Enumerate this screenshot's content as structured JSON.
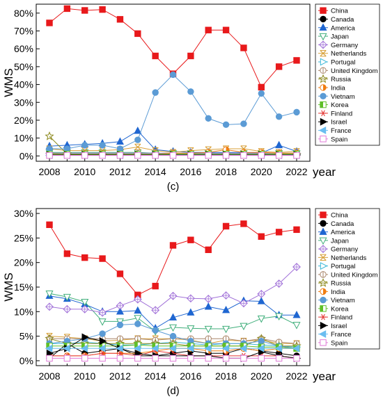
{
  "chart_data": [
    {
      "type": "line",
      "panel_label": "(c)",
      "xlabel": "year",
      "ylabel": "WMS",
      "x": [
        2008,
        2009,
        2010,
        2011,
        2012,
        2013,
        2014,
        2015,
        2016,
        2017,
        2018,
        2019,
        2020,
        2021,
        2022
      ],
      "xticks": [
        "2008",
        "2010",
        "2012",
        "2014",
        "2016",
        "2018",
        "2020",
        "2022"
      ],
      "ylim": [
        -3,
        85
      ],
      "yticks": [
        "0%",
        "10%",
        "20%",
        "30%",
        "40%",
        "50%",
        "60%",
        "70%",
        "80%"
      ],
      "legend_position": "right",
      "series": [
        {
          "name": "China",
          "color": "#e8191b",
          "marker": "square",
          "values": [
            74.5,
            82.5,
            81.5,
            82,
            76.5,
            68.5,
            56,
            46,
            56,
            70.5,
            70.5,
            60.5,
            38.5,
            50,
            53.5
          ]
        },
        {
          "name": "Canada",
          "color": "#000000",
          "marker": "circle",
          "values": [
            0.5,
            0.5,
            0.5,
            0.5,
            0.5,
            0.5,
            0.5,
            0.5,
            0.5,
            0.5,
            0.5,
            0.5,
            0.5,
            0.5,
            0.5
          ]
        },
        {
          "name": "America",
          "color": "#1f66d1",
          "marker": "triangle-up",
          "values": [
            5.5,
            6,
            6.5,
            7,
            8,
            14,
            3.5,
            2.5,
            2,
            2,
            2,
            2,
            1.5,
            6,
            2.5
          ]
        },
        {
          "name": "Japan",
          "color": "#3fae7a",
          "marker": "triangle-down-open",
          "values": [
            2,
            2,
            2,
            2,
            2,
            2,
            1.5,
            1.5,
            1.5,
            1.5,
            1.5,
            1.5,
            1.5,
            1.5,
            1.5
          ]
        },
        {
          "name": "Germany",
          "color": "#a070d8",
          "marker": "diamond-open",
          "values": [
            1.5,
            1.5,
            1.5,
            1.5,
            1.5,
            1.5,
            1.5,
            1.5,
            1.5,
            1.5,
            1.5,
            1.5,
            1.5,
            1.5,
            1.5
          ]
        },
        {
          "name": "Netherlands",
          "color": "#d8a13a",
          "marker": "x-box",
          "values": [
            4,
            3,
            3,
            3,
            3.5,
            5,
            3,
            2,
            3,
            3.5,
            4,
            4,
            2.5,
            2,
            2.5
          ]
        },
        {
          "name": "Portugal",
          "color": "#37b6d6",
          "marker": "triangle-right-open",
          "values": [
            1,
            1,
            1,
            1,
            1,
            1,
            1,
            1,
            1,
            1,
            1,
            1,
            1,
            1,
            1
          ]
        },
        {
          "name": "United Kingdom",
          "color": "#a9856a",
          "marker": "circle-bar",
          "values": [
            1.5,
            1,
            1,
            1,
            1,
            1,
            1,
            1,
            1,
            1,
            1,
            1,
            1,
            1,
            1
          ]
        },
        {
          "name": "Russia",
          "color": "#8d8a1f",
          "marker": "star",
          "values": [
            11,
            1,
            0.5,
            0.5,
            0.5,
            0.5,
            0.5,
            0.5,
            0.5,
            0.5,
            0.5,
            0.5,
            0.5,
            0.5,
            0.5
          ]
        },
        {
          "name": "India",
          "color": "#f07d12",
          "marker": "half-circle",
          "values": [
            1,
            1,
            1,
            1,
            1,
            1,
            1,
            1.5,
            1.5,
            2,
            3.5,
            2,
            2,
            1.5,
            1.5
          ]
        },
        {
          "name": "Vietnam",
          "color": "#5b9bd5",
          "marker": "circle",
          "values": [
            4,
            4,
            6,
            6,
            4,
            9,
            35.5,
            45.5,
            36,
            21,
            17.5,
            18,
            35,
            22,
            24.5
          ]
        },
        {
          "name": "Korea",
          "color": "#5fbf28",
          "marker": "square-half",
          "values": [
            1,
            1,
            1,
            1,
            1,
            1,
            1,
            1,
            1,
            1,
            1,
            1,
            1,
            1,
            1
          ]
        },
        {
          "name": "Finland",
          "color": "#e53935",
          "marker": "asterisk",
          "values": [
            0.5,
            0.5,
            0.5,
            0.5,
            0.5,
            0.5,
            0.5,
            0.5,
            0.5,
            0.5,
            0.5,
            0.5,
            0.5,
            0.5,
            0.5
          ]
        },
        {
          "name": "Israel",
          "color": "#000000",
          "marker": "triangle-right",
          "values": [
            0.5,
            0.5,
            0.5,
            0.5,
            0.5,
            0.5,
            0.5,
            0.5,
            0.5,
            0.5,
            0.5,
            0.5,
            0.5,
            0.5,
            0.5
          ]
        },
        {
          "name": "France",
          "color": "#6bbdf0",
          "marker": "triangle-left",
          "values": [
            0.3,
            0.3,
            0.3,
            0.3,
            0.3,
            0.3,
            0.3,
            0.3,
            0.3,
            0.3,
            0.3,
            0.3,
            0.3,
            0.3,
            0.3
          ]
        },
        {
          "name": "Spain",
          "color": "#e07ad8",
          "marker": "square-open",
          "values": [
            0.3,
            0.3,
            0.3,
            0.3,
            0.3,
            0.3,
            0.3,
            0.3,
            0.3,
            0.3,
            0.3,
            0.3,
            0.3,
            0.3,
            0.3
          ]
        }
      ]
    },
    {
      "type": "line",
      "panel_label": "(d)",
      "xlabel": "year",
      "ylabel": "WMS",
      "x": [
        2008,
        2009,
        2010,
        2011,
        2012,
        2013,
        2014,
        2015,
        2016,
        2017,
        2018,
        2019,
        2020,
        2021,
        2022
      ],
      "xticks": [
        "2008",
        "2010",
        "2012",
        "2014",
        "2016",
        "2018",
        "2020",
        "2022"
      ],
      "ylim": [
        -1,
        31
      ],
      "yticks": [
        "0%",
        "5%",
        "10%",
        "15%",
        "20%",
        "25%",
        "30%"
      ],
      "legend_position": "right",
      "series": [
        {
          "name": "China",
          "color": "#e8191b",
          "marker": "square",
          "values": [
            27.7,
            21.8,
            21,
            20.8,
            17.7,
            13.4,
            15.2,
            23.5,
            24.6,
            22.6,
            27.4,
            27.9,
            25.3,
            26.2,
            26.7
          ]
        },
        {
          "name": "Canada",
          "color": "#000000",
          "marker": "circle",
          "values": [
            0.5,
            3.5,
            1.5,
            2,
            2.5,
            1,
            1,
            1.5,
            2,
            1.5,
            1.5,
            2.5,
            2,
            1.5,
            1
          ]
        },
        {
          "name": "America",
          "color": "#1f66d1",
          "marker": "triangle-up",
          "values": [
            13.2,
            12.6,
            11.5,
            10,
            10,
            10.2,
            6.6,
            8.8,
            9.8,
            11,
            10.3,
            12.2,
            12.1,
            9.3,
            9.3
          ]
        },
        {
          "name": "Japan",
          "color": "#3fae7a",
          "marker": "triangle-down-open",
          "values": [
            13.7,
            13,
            12,
            8,
            8,
            8.7,
            6,
            6.8,
            6.6,
            6.5,
            6.5,
            7.1,
            8.6,
            9.1,
            7.3
          ]
        },
        {
          "name": "Germany",
          "color": "#a070d8",
          "marker": "diamond-open",
          "values": [
            11,
            10.5,
            10.5,
            9.8,
            11.2,
            12.5,
            10.3,
            13.2,
            12.7,
            12.6,
            13.3,
            11.7,
            13.6,
            15.7,
            19.1
          ]
        },
        {
          "name": "Netherlands",
          "color": "#d8a13a",
          "marker": "x-box",
          "values": [
            5,
            4.8,
            4.5,
            4,
            4.2,
            4.5,
            4.5,
            4.5,
            4.2,
            3.5,
            4.2,
            4,
            4.2,
            3.5,
            3.5
          ]
        },
        {
          "name": "Portugal",
          "color": "#37b6d6",
          "marker": "triangle-right-open",
          "values": [
            3.5,
            3.5,
            3.8,
            3.5,
            3.2,
            3.2,
            3.5,
            3.8,
            3.5,
            3.2,
            3.5,
            3.5,
            3.2,
            3,
            2.8
          ]
        },
        {
          "name": "United Kingdom",
          "color": "#a9856a",
          "marker": "circle-bar",
          "values": [
            4.5,
            4.5,
            4.5,
            4.5,
            4.5,
            4.5,
            4.2,
            4.5,
            4.5,
            4.5,
            4.5,
            4,
            4.5,
            3.8,
            3.5
          ]
        },
        {
          "name": "Russia",
          "color": "#8d8a1f",
          "marker": "star",
          "values": [
            4.5,
            3.5,
            3.5,
            3.5,
            3.5,
            3.5,
            3.5,
            3.5,
            3,
            3,
            3,
            3,
            4.5,
            3,
            3
          ]
        },
        {
          "name": "India",
          "color": "#f07d12",
          "marker": "half-circle",
          "values": [
            1,
            1,
            1,
            1.5,
            1.5,
            1.5,
            2,
            2.5,
            2.5,
            2,
            2,
            2.5,
            2,
            2.5,
            2.5
          ]
        },
        {
          "name": "Vietnam",
          "color": "#5b9bd5",
          "marker": "circle",
          "values": [
            3.5,
            4,
            4.5,
            5.5,
            7.3,
            7.5,
            6.2,
            5,
            4,
            3.5,
            3.5,
            3.5,
            4,
            3,
            2.5
          ]
        },
        {
          "name": "Korea",
          "color": "#5fbf28",
          "marker": "square-half",
          "values": [
            3,
            3,
            3,
            3,
            3,
            3.2,
            3,
            3,
            3,
            3,
            3,
            3,
            2.8,
            2.8,
            2.5
          ]
        },
        {
          "name": "Finland",
          "color": "#e53935",
          "marker": "asterisk",
          "values": [
            1,
            1,
            1,
            1.5,
            1.5,
            1,
            2,
            1.5,
            1,
            1,
            1,
            1,
            1,
            1,
            0.5
          ]
        },
        {
          "name": "Israel",
          "color": "#000000",
          "marker": "triangle-right",
          "values": [
            1.5,
            2.5,
            4.8,
            4,
            2.5,
            1.5,
            1,
            1,
            1,
            1,
            0.5,
            0.5,
            1.8,
            1,
            0.5
          ]
        },
        {
          "name": "France",
          "color": "#6bbdf0",
          "marker": "triangle-left",
          "values": [
            2.5,
            2.5,
            2.5,
            2.5,
            2.5,
            2.5,
            2.5,
            2.5,
            2.5,
            2.5,
            2.5,
            2.5,
            2.5,
            2.5,
            2.5
          ]
        },
        {
          "name": "Spain",
          "color": "#e07ad8",
          "marker": "square-open",
          "values": [
            0.5,
            0.5,
            0.5,
            0.5,
            0.5,
            0.5,
            0.5,
            0.5,
            0.5,
            0.5,
            0.5,
            0.5,
            0.5,
            0.5,
            0.5
          ]
        }
      ]
    }
  ]
}
